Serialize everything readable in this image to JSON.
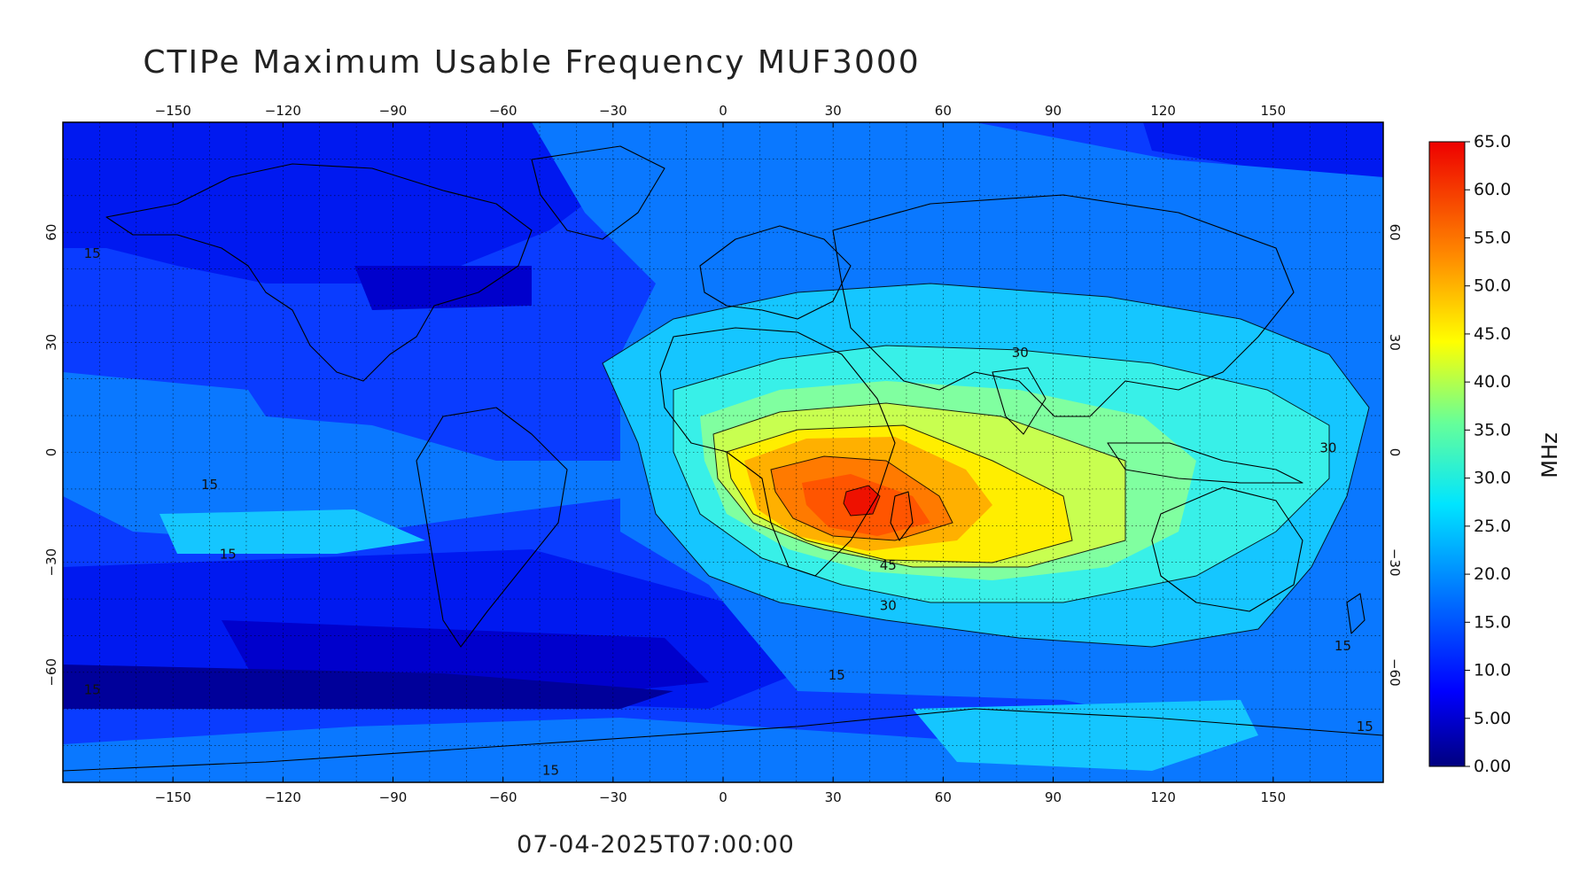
{
  "title": "CTIPe Maximum Usable Frequency MUF3000",
  "timestamp": "07-04-2025T07:00:00",
  "map": {
    "lon_ticks": [
      -150,
      -120,
      -90,
      -60,
      -30,
      0,
      30,
      60,
      90,
      120,
      150
    ],
    "lat_ticks": [
      60,
      30,
      0,
      -30,
      -60
    ],
    "lon_range": [
      -180,
      180
    ],
    "lat_range": [
      -90,
      90
    ],
    "contour_labels": [
      {
        "text": "15",
        "lon": -172,
        "lat": 53
      },
      {
        "text": "15",
        "lon": -140,
        "lat": -10
      },
      {
        "text": "15",
        "lon": -135,
        "lat": -29
      },
      {
        "text": "15",
        "lon": -172,
        "lat": -66
      },
      {
        "text": "15",
        "lon": 31,
        "lat": -62
      },
      {
        "text": "15",
        "lon": -47,
        "lat": -88
      },
      {
        "text": "15",
        "lon": 169,
        "lat": -54
      },
      {
        "text": "15",
        "lon": 175,
        "lat": -76
      },
      {
        "text": "30",
        "lon": 81,
        "lat": 26
      },
      {
        "text": "30",
        "lon": 165,
        "lat": 0
      },
      {
        "text": "30",
        "lon": 45,
        "lat": -43
      },
      {
        "text": "45",
        "lon": 45,
        "lat": -32
      }
    ]
  },
  "colorbar": {
    "unit": "MHz",
    "min": 0,
    "max": 65,
    "tick_labels": [
      "65.0",
      "60.0",
      "55.0",
      "50.0",
      "45.0",
      "40.0",
      "35.0",
      "30.0",
      "25.0",
      "20.0",
      "15.0",
      "10.0",
      "5.00",
      "0.00"
    ],
    "colors": [
      "#00007f",
      "#0000ff",
      "#0066ff",
      "#00ccff",
      "#44ffbb",
      "#bbff44",
      "#ffee00",
      "#ff9900",
      "#ff3300",
      "#cc0000"
    ]
  }
}
